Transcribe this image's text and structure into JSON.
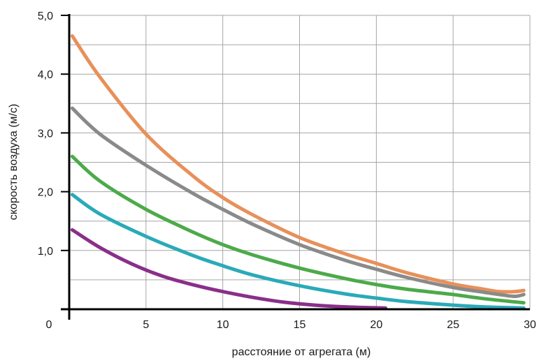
{
  "chart_data": {
    "type": "line",
    "xlabel": "расстояние от агрегата (м)",
    "ylabel": "скорость воздуха (м/с)",
    "xlim": [
      0,
      30
    ],
    "ylim": [
      0,
      5.0
    ],
    "x_ticks": [
      "0",
      "5",
      "10",
      "15",
      "20",
      "25",
      "30"
    ],
    "y_ticks": [
      "1,0",
      "2,0",
      "3,0",
      "4,0",
      "5,0"
    ],
    "grid": true,
    "legend": "none",
    "series": [
      {
        "color": "#e8905a",
        "x": [
          0.2,
          2,
          5,
          8,
          10,
          12,
          15,
          18,
          20,
          22,
          25,
          27,
          28,
          29,
          29.6
        ],
        "values": [
          4.65,
          3.95,
          2.98,
          2.28,
          1.9,
          1.6,
          1.22,
          0.94,
          0.78,
          0.62,
          0.43,
          0.34,
          0.3,
          0.3,
          0.32
        ]
      },
      {
        "color": "#8a8a8a",
        "x": [
          0.2,
          2,
          5,
          8,
          10,
          12,
          15,
          18,
          20,
          22,
          25,
          27,
          28,
          29,
          29.6
        ],
        "values": [
          3.42,
          2.98,
          2.45,
          1.98,
          1.7,
          1.44,
          1.1,
          0.83,
          0.68,
          0.54,
          0.37,
          0.29,
          0.25,
          0.22,
          0.25
        ]
      },
      {
        "color": "#4caa4a",
        "x": [
          0.2,
          2,
          5,
          8,
          10,
          12,
          15,
          18,
          20,
          22,
          25,
          27,
          29.6
        ],
        "values": [
          2.6,
          2.18,
          1.7,
          1.32,
          1.1,
          0.92,
          0.7,
          0.52,
          0.42,
          0.34,
          0.25,
          0.18,
          0.11
        ]
      },
      {
        "color": "#2aaab8",
        "x": [
          0.2,
          2,
          5,
          8,
          10,
          12,
          15,
          18,
          20,
          22,
          25,
          27,
          29.6
        ],
        "values": [
          1.95,
          1.62,
          1.24,
          0.92,
          0.74,
          0.58,
          0.4,
          0.26,
          0.19,
          0.13,
          0.07,
          0.04,
          0.02
        ]
      },
      {
        "color": "#8a2f8a",
        "x": [
          0.2,
          2,
          4,
          6,
          8,
          10,
          12,
          14,
          16,
          18,
          20.6
        ],
        "values": [
          1.35,
          1.05,
          0.78,
          0.57,
          0.42,
          0.3,
          0.2,
          0.12,
          0.07,
          0.04,
          0.02
        ]
      }
    ]
  }
}
